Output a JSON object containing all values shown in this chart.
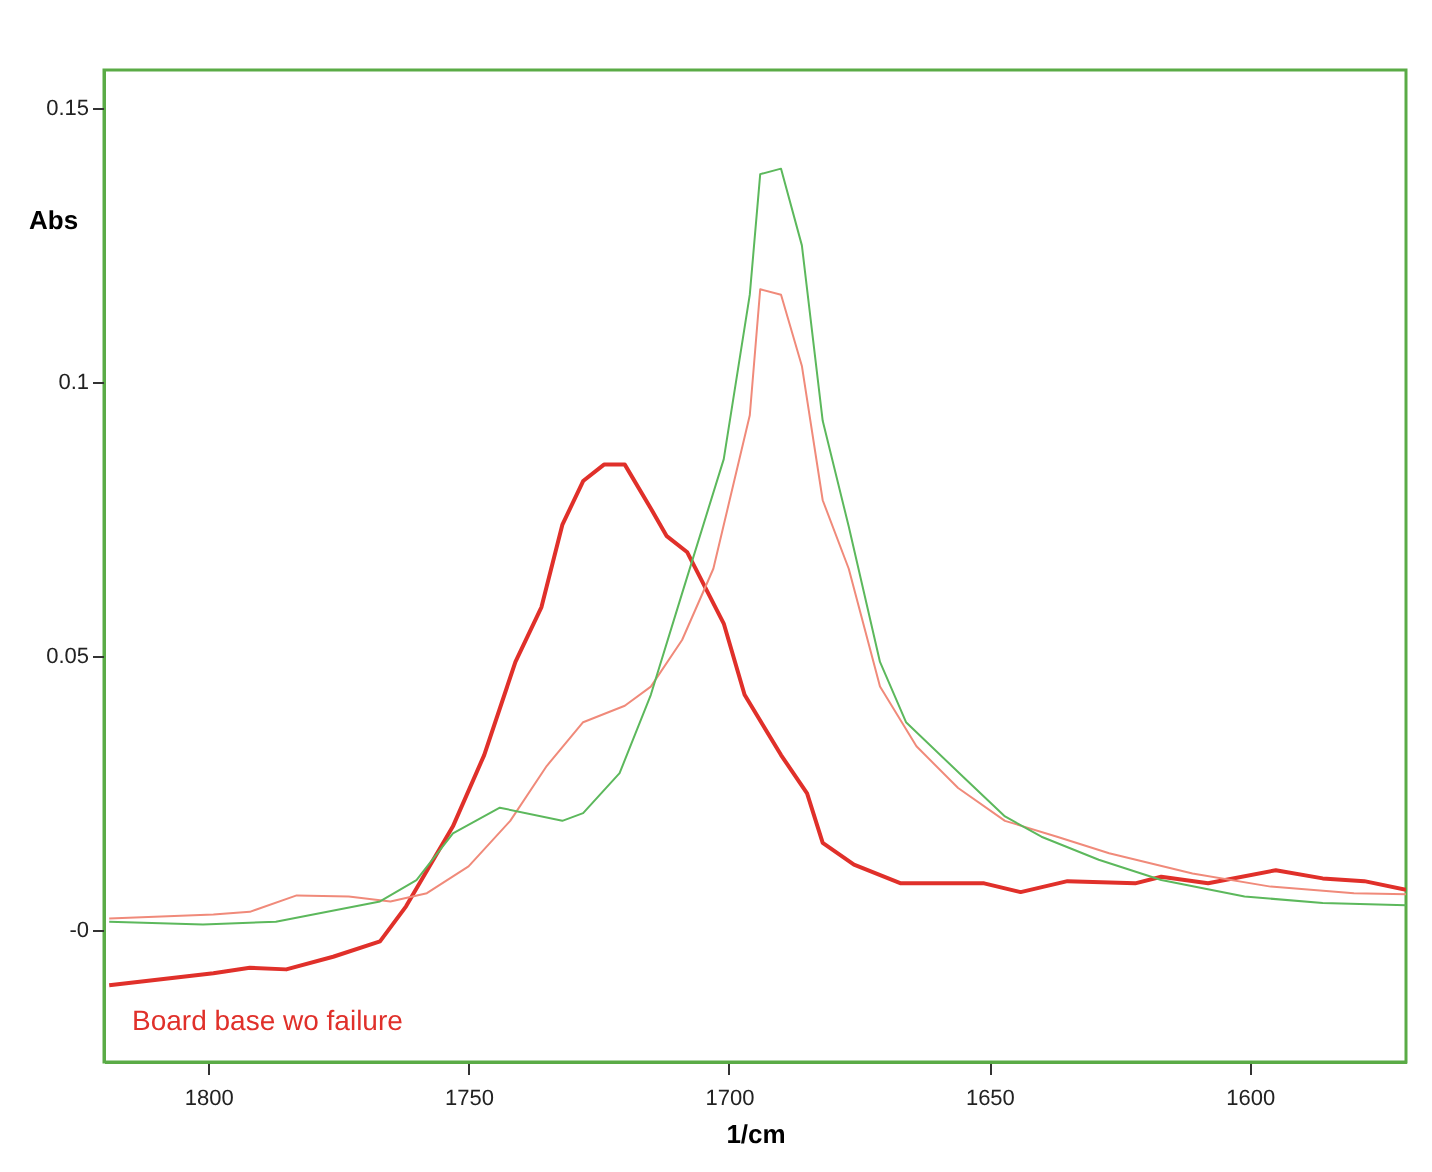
{
  "chart_data": {
    "type": "line",
    "xlabel": "1/cm",
    "ylabel": "Abs",
    "xlim": [
      1820,
      1570
    ],
    "xticks": [
      1800,
      1750,
      1700,
      1650,
      1600
    ],
    "ylim": [
      -0.024,
      0.157
    ],
    "yticks": [
      {
        "value": 0,
        "label": "-0"
      },
      0.05,
      {
        "value": 0.1,
        "label": "0.1"
      },
      0.15
    ],
    "series": [
      {
        "name": "Board base wo failure",
        "color": "#e0302a",
        "x": [
          1819,
          1799,
          1792,
          1785,
          1776,
          1767,
          1762,
          1753,
          1747,
          1741,
          1736,
          1732,
          1728,
          1724,
          1720,
          1715,
          1712,
          1708,
          1701,
          1697,
          1690,
          1685,
          1682,
          1676,
          1667,
          1651,
          1644,
          1635,
          1622,
          1617,
          1608,
          1595,
          1586,
          1578,
          1570
        ],
        "values": [
          -0.01,
          -0.0078,
          -0.0068,
          -0.0071,
          -0.0048,
          -0.002,
          0.0044,
          0.019,
          0.032,
          0.049,
          0.059,
          0.074,
          0.082,
          0.085,
          0.085,
          0.077,
          0.072,
          0.069,
          0.056,
          0.043,
          0.032,
          0.025,
          0.016,
          0.012,
          0.0086,
          0.0086,
          0.007,
          0.009,
          0.0086,
          0.0098,
          0.0086,
          0.011,
          0.0095,
          0.009,
          0.0074
        ]
      },
      {
        "color": "#f08a7a",
        "x": [
          1819,
          1799,
          1792,
          1783,
          1773,
          1765,
          1758,
          1750,
          1742,
          1735,
          1728,
          1720,
          1715,
          1709,
          1703,
          1696,
          1694,
          1690,
          1686,
          1682,
          1677,
          1671,
          1664,
          1656,
          1647,
          1637,
          1627,
          1611,
          1596,
          1580,
          1570
        ],
        "values": [
          0.0022,
          0.0029,
          0.0034,
          0.0064,
          0.0062,
          0.0053,
          0.0068,
          0.0117,
          0.02,
          0.03,
          0.038,
          0.041,
          0.0445,
          0.053,
          0.066,
          0.094,
          0.117,
          0.116,
          0.103,
          0.0785,
          0.066,
          0.0445,
          0.0336,
          0.026,
          0.02,
          0.0171,
          0.0141,
          0.0104,
          0.008,
          0.0068,
          0.0066
        ]
      },
      {
        "color": "#5cb85c",
        "x": [
          1819,
          1801,
          1787,
          1767,
          1760,
          1753,
          1744,
          1732,
          1728,
          1721,
          1715,
          1709,
          1701,
          1696,
          1694,
          1690,
          1686,
          1682,
          1677,
          1671,
          1666,
          1655,
          1647,
          1640,
          1629,
          1617,
          1601,
          1586,
          1570
        ],
        "values": [
          0.0016,
          0.0011,
          0.0016,
          0.0053,
          0.0092,
          0.0177,
          0.0224,
          0.02,
          0.0214,
          0.0287,
          0.043,
          0.0615,
          0.086,
          0.116,
          0.138,
          0.139,
          0.125,
          0.093,
          0.0737,
          0.049,
          0.038,
          0.028,
          0.0208,
          0.0171,
          0.0129,
          0.0092,
          0.0062,
          0.005,
          0.0046
        ]
      }
    ]
  }
}
